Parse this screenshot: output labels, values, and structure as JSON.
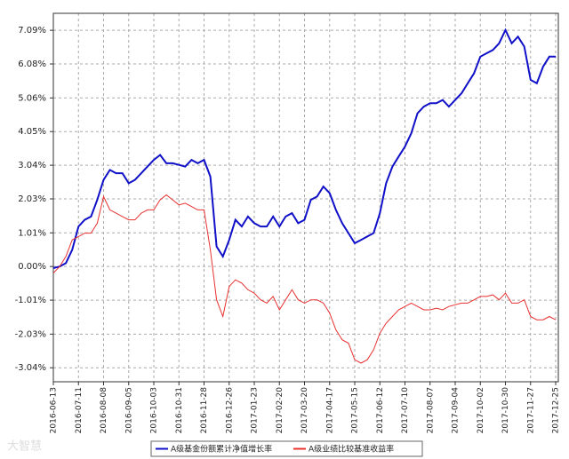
{
  "chart_data": {
    "type": "line",
    "watermark": "大智慧",
    "x": [
      "2016-06-13",
      "2016-06-20",
      "2016-06-27",
      "2016-07-04",
      "2016-07-11",
      "2016-07-18",
      "2016-07-25",
      "2016-08-01",
      "2016-08-08",
      "2016-08-15",
      "2016-08-22",
      "2016-08-29",
      "2016-09-05",
      "2016-09-12",
      "2016-09-19",
      "2016-09-26",
      "2016-10-03",
      "2016-10-10",
      "2016-10-17",
      "2016-10-24",
      "2016-10-31",
      "2016-11-07",
      "2016-11-14",
      "2016-11-21",
      "2016-11-28",
      "2016-12-05",
      "2016-12-12",
      "2016-12-19",
      "2016-12-26",
      "2017-01-02",
      "2017-01-09",
      "2017-01-16",
      "2017-01-23",
      "2017-01-30",
      "2017-02-06",
      "2017-02-13",
      "2017-02-20",
      "2017-02-27",
      "2017-03-06",
      "2017-03-13",
      "2017-03-20",
      "2017-03-27",
      "2017-04-03",
      "2017-04-10",
      "2017-04-17",
      "2017-04-24",
      "2017-05-01",
      "2017-05-08",
      "2017-05-15",
      "2017-05-22",
      "2017-05-29",
      "2017-06-05",
      "2017-06-12",
      "2017-06-19",
      "2017-06-26",
      "2017-07-03",
      "2017-07-10",
      "2017-07-17",
      "2017-07-24",
      "2017-07-31",
      "2017-08-07",
      "2017-08-14",
      "2017-08-21",
      "2017-08-28",
      "2017-09-04",
      "2017-09-11",
      "2017-09-18",
      "2017-09-25",
      "2017-10-02",
      "2017-10-09",
      "2017-10-16",
      "2017-10-23",
      "2017-10-30",
      "2017-11-06",
      "2017-11-13",
      "2017-11-20",
      "2017-11-27",
      "2017-12-04",
      "2017-12-11",
      "2017-12-18",
      "2017-12-25"
    ],
    "series": [
      {
        "name": "A级基金份额累计净值增长率",
        "color": "#1010c8",
        "values": [
          -0.05,
          0.0,
          0.1,
          0.5,
          1.2,
          1.4,
          1.5,
          2.0,
          2.6,
          2.9,
          2.8,
          2.8,
          2.5,
          2.6,
          2.8,
          3.0,
          3.2,
          3.35,
          3.1,
          3.1,
          3.05,
          3.0,
          3.2,
          3.1,
          3.2,
          2.7,
          0.6,
          0.3,
          0.8,
          1.4,
          1.2,
          1.5,
          1.3,
          1.2,
          1.2,
          1.5,
          1.2,
          1.5,
          1.6,
          1.3,
          1.4,
          2.0,
          2.1,
          2.4,
          2.2,
          1.7,
          1.3,
          1.0,
          0.7,
          0.8,
          0.9,
          1.0,
          1.6,
          2.5,
          3.0,
          3.3,
          3.6,
          4.0,
          4.6,
          4.8,
          4.9,
          4.9,
          5.0,
          4.8,
          5.0,
          5.2,
          5.5,
          5.8,
          6.3,
          6.4,
          6.5,
          6.7,
          7.1,
          6.7,
          6.9,
          6.6,
          5.6,
          5.5,
          6.0,
          6.3,
          6.3
        ]
      },
      {
        "name": "A级业绩比较基准收益率",
        "color": "#e83030",
        "values": [
          -0.2,
          0.0,
          0.3,
          0.8,
          0.9,
          1.0,
          1.0,
          1.3,
          2.1,
          1.7,
          1.6,
          1.5,
          1.4,
          1.4,
          1.6,
          1.7,
          1.7,
          2.0,
          2.15,
          2.0,
          1.85,
          1.9,
          1.8,
          1.7,
          1.7,
          0.5,
          -1.0,
          -1.5,
          -0.6,
          -0.4,
          -0.5,
          -0.7,
          -0.8,
          -1.0,
          -1.1,
          -0.9,
          -1.3,
          -1.0,
          -0.7,
          -1.0,
          -1.1,
          -1.0,
          -1.0,
          -1.1,
          -1.4,
          -1.9,
          -2.2,
          -2.3,
          -2.8,
          -2.9,
          -2.8,
          -2.5,
          -2.0,
          -1.7,
          -1.5,
          -1.3,
          -1.2,
          -1.1,
          -1.2,
          -1.3,
          -1.3,
          -1.25,
          -1.3,
          -1.2,
          -1.15,
          -1.1,
          -1.1,
          -1.0,
          -0.9,
          -0.9,
          -0.85,
          -1.0,
          -0.8,
          -1.1,
          -1.1,
          -1.0,
          -1.5,
          -1.6,
          -1.6,
          -1.5,
          -1.6
        ]
      }
    ],
    "xlim": [
      "2016-06-13",
      "2017-12-25"
    ],
    "xticks": [
      "2016-06-13",
      "2016-07-11",
      "2016-08-08",
      "2016-09-05",
      "2016-10-03",
      "2016-10-31",
      "2016-11-28",
      "2016-12-26",
      "2017-01-23",
      "2017-02-20",
      "2017-03-20",
      "2017-04-17",
      "2017-05-15",
      "2017-06-12",
      "2017-07-10",
      "2017-08-07",
      "2017-09-04",
      "2017-10-02",
      "2017-10-30",
      "2017-11-27",
      "2017-12-25"
    ],
    "ylim": [
      -3.46,
      7.6
    ],
    "yticks": [
      {
        "value": 7.09,
        "label": "7.09%"
      },
      {
        "value": 6.08,
        "label": "6.08%"
      },
      {
        "value": 5.06,
        "label": "5.06%"
      },
      {
        "value": 4.05,
        "label": "4.05%"
      },
      {
        "value": 3.04,
        "label": "3.04%"
      },
      {
        "value": 2.03,
        "label": "2.03%"
      },
      {
        "value": 1.01,
        "label": "1.01%"
      },
      {
        "value": 0,
        "label": "0.00%"
      },
      {
        "value": -1.01,
        "label": "-1.01%"
      },
      {
        "value": -2.03,
        "label": "-2.03%"
      },
      {
        "value": -3.04,
        "label": "-3.04%"
      }
    ],
    "grid": true
  }
}
